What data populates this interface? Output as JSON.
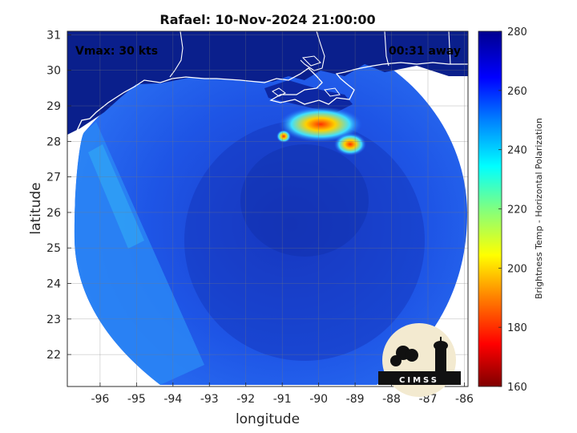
{
  "title": "Rafael: 10-Nov-2024 21:00:00",
  "annotations": {
    "vmax": "Vmax: 30 kts",
    "away": "00:31 away"
  },
  "axes": {
    "xlabel": "longitude",
    "ylabel": "latitude",
    "x_ticks": [
      "-96",
      "-95",
      "-94",
      "-93",
      "-92",
      "-91",
      "-90",
      "-89",
      "-88",
      "-87",
      "-86"
    ],
    "y_ticks": [
      "31",
      "30",
      "29",
      "28",
      "27",
      "26",
      "25",
      "24",
      "23",
      "22"
    ],
    "xlim": [
      -96.9,
      -85.9
    ],
    "ylim": [
      21.1,
      31.1
    ]
  },
  "colorbar": {
    "label": "Brightness Temp - Horizontal Polarization",
    "ticks": [
      "280",
      "260",
      "240",
      "220",
      "200",
      "180",
      "160"
    ],
    "range": [
      160,
      280
    ],
    "colormap": [
      "#7f0000",
      "#ff0000",
      "#ff8000",
      "#ffff00",
      "#80ff80",
      "#00ffff",
      "#0080ff",
      "#0000ff",
      "#00008f"
    ]
  },
  "logo": {
    "text": "CIMSS"
  },
  "colors": {
    "ocean_warm": "#1a3fd6",
    "ocean_cool": "#1f6ff0",
    "land": "#0a1f8c",
    "coast": "#ffffff"
  }
}
